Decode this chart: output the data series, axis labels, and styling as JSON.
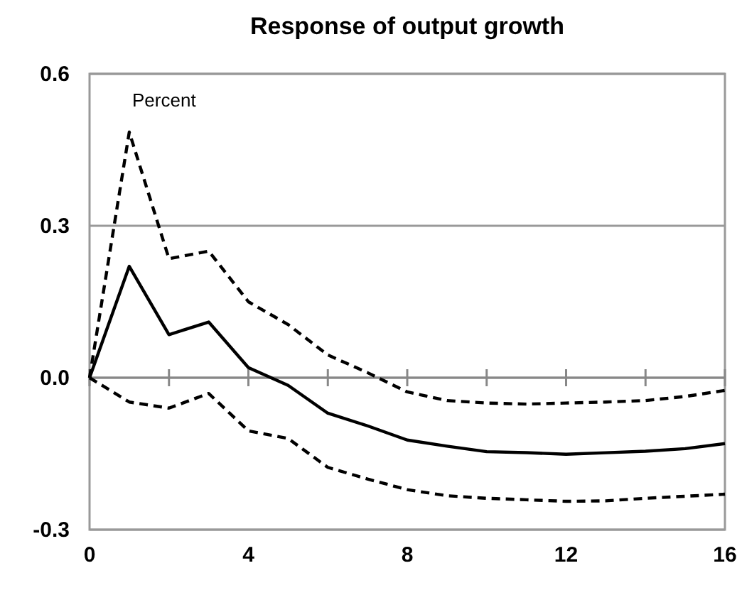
{
  "chart_data": {
    "type": "line",
    "title": "Response of output growth",
    "ylabel": "Percent",
    "x": [
      0,
      1,
      2,
      3,
      4,
      5,
      6,
      7,
      8,
      9,
      10,
      11,
      12,
      13,
      14,
      15,
      16
    ],
    "xlim": [
      0,
      16
    ],
    "xticks": [
      0,
      {
        "value": 2,
        "label": null
      },
      4,
      {
        "value": 6,
        "label": null
      },
      8,
      {
        "value": 10,
        "label": null
      },
      12,
      {
        "value": 14,
        "label": null
      },
      16
    ],
    "ylim": [
      -0.3,
      0.6
    ],
    "yticks": [
      {
        "value": -0.3,
        "label": "-0.3"
      },
      {
        "value": 0,
        "label": "0.0"
      },
      {
        "value": 0.3,
        "label": "0.3"
      },
      {
        "value": 0.6,
        "label": "0.6"
      }
    ],
    "grid": "y",
    "marker": "none",
    "series": [
      {
        "color": "#000000",
        "line_style": "solid",
        "values": [
          0,
          0.22,
          0.085,
          0.11,
          0.02,
          -0.015,
          -0.07,
          -0.095,
          -0.123,
          -0.135,
          -0.146,
          -0.148,
          -0.151,
          -0.148,
          -0.145,
          -0.14,
          -0.13
        ]
      },
      {
        "color": "#000000",
        "line_style": "dashed",
        "values": [
          0,
          0.485,
          0.235,
          0.25,
          0.15,
          0.105,
          0.045,
          0.01,
          -0.028,
          -0.045,
          -0.05,
          -0.052,
          -0.05,
          -0.048,
          -0.045,
          -0.037,
          -0.025
        ]
      },
      {
        "color": "#000000",
        "line_style": "dashed",
        "values": [
          0,
          -0.048,
          -0.06,
          -0.031,
          -0.105,
          -0.12,
          -0.177,
          -0.2,
          -0.221,
          -0.233,
          -0.238,
          -0.241,
          -0.244,
          -0.243,
          -0.238,
          -0.234,
          -0.23
        ]
      }
    ]
  }
}
